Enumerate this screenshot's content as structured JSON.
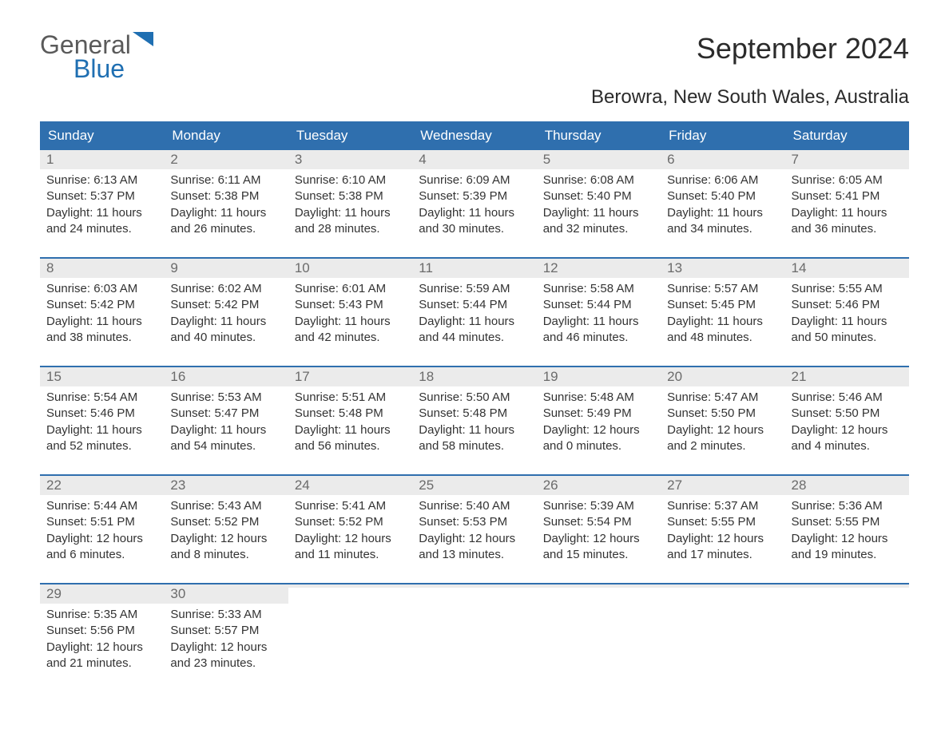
{
  "logo": {
    "word1": "General",
    "word2": "Blue"
  },
  "title": "September 2024",
  "location": "Berowra, New South Wales, Australia",
  "colors": {
    "header_bg": "#2f6fae",
    "header_text": "#ffffff",
    "daynum_bg": "#ebebeb",
    "daynum_text": "#6b6b6b",
    "border": "#2f6fae",
    "body_text": "#333333",
    "logo_gray": "#5a5a5a",
    "logo_blue": "#1f6fb2"
  },
  "day_headers": [
    "Sunday",
    "Monday",
    "Tuesday",
    "Wednesday",
    "Thursday",
    "Friday",
    "Saturday"
  ],
  "weeks": [
    [
      {
        "num": "1",
        "sunrise": "Sunrise: 6:13 AM",
        "sunset": "Sunset: 5:37 PM",
        "day1": "Daylight: 11 hours",
        "day2": "and 24 minutes."
      },
      {
        "num": "2",
        "sunrise": "Sunrise: 6:11 AM",
        "sunset": "Sunset: 5:38 PM",
        "day1": "Daylight: 11 hours",
        "day2": "and 26 minutes."
      },
      {
        "num": "3",
        "sunrise": "Sunrise: 6:10 AM",
        "sunset": "Sunset: 5:38 PM",
        "day1": "Daylight: 11 hours",
        "day2": "and 28 minutes."
      },
      {
        "num": "4",
        "sunrise": "Sunrise: 6:09 AM",
        "sunset": "Sunset: 5:39 PM",
        "day1": "Daylight: 11 hours",
        "day2": "and 30 minutes."
      },
      {
        "num": "5",
        "sunrise": "Sunrise: 6:08 AM",
        "sunset": "Sunset: 5:40 PM",
        "day1": "Daylight: 11 hours",
        "day2": "and 32 minutes."
      },
      {
        "num": "6",
        "sunrise": "Sunrise: 6:06 AM",
        "sunset": "Sunset: 5:40 PM",
        "day1": "Daylight: 11 hours",
        "day2": "and 34 minutes."
      },
      {
        "num": "7",
        "sunrise": "Sunrise: 6:05 AM",
        "sunset": "Sunset: 5:41 PM",
        "day1": "Daylight: 11 hours",
        "day2": "and 36 minutes."
      }
    ],
    [
      {
        "num": "8",
        "sunrise": "Sunrise: 6:03 AM",
        "sunset": "Sunset: 5:42 PM",
        "day1": "Daylight: 11 hours",
        "day2": "and 38 minutes."
      },
      {
        "num": "9",
        "sunrise": "Sunrise: 6:02 AM",
        "sunset": "Sunset: 5:42 PM",
        "day1": "Daylight: 11 hours",
        "day2": "and 40 minutes."
      },
      {
        "num": "10",
        "sunrise": "Sunrise: 6:01 AM",
        "sunset": "Sunset: 5:43 PM",
        "day1": "Daylight: 11 hours",
        "day2": "and 42 minutes."
      },
      {
        "num": "11",
        "sunrise": "Sunrise: 5:59 AM",
        "sunset": "Sunset: 5:44 PM",
        "day1": "Daylight: 11 hours",
        "day2": "and 44 minutes."
      },
      {
        "num": "12",
        "sunrise": "Sunrise: 5:58 AM",
        "sunset": "Sunset: 5:44 PM",
        "day1": "Daylight: 11 hours",
        "day2": "and 46 minutes."
      },
      {
        "num": "13",
        "sunrise": "Sunrise: 5:57 AM",
        "sunset": "Sunset: 5:45 PM",
        "day1": "Daylight: 11 hours",
        "day2": "and 48 minutes."
      },
      {
        "num": "14",
        "sunrise": "Sunrise: 5:55 AM",
        "sunset": "Sunset: 5:46 PM",
        "day1": "Daylight: 11 hours",
        "day2": "and 50 minutes."
      }
    ],
    [
      {
        "num": "15",
        "sunrise": "Sunrise: 5:54 AM",
        "sunset": "Sunset: 5:46 PM",
        "day1": "Daylight: 11 hours",
        "day2": "and 52 minutes."
      },
      {
        "num": "16",
        "sunrise": "Sunrise: 5:53 AM",
        "sunset": "Sunset: 5:47 PM",
        "day1": "Daylight: 11 hours",
        "day2": "and 54 minutes."
      },
      {
        "num": "17",
        "sunrise": "Sunrise: 5:51 AM",
        "sunset": "Sunset: 5:48 PM",
        "day1": "Daylight: 11 hours",
        "day2": "and 56 minutes."
      },
      {
        "num": "18",
        "sunrise": "Sunrise: 5:50 AM",
        "sunset": "Sunset: 5:48 PM",
        "day1": "Daylight: 11 hours",
        "day2": "and 58 minutes."
      },
      {
        "num": "19",
        "sunrise": "Sunrise: 5:48 AM",
        "sunset": "Sunset: 5:49 PM",
        "day1": "Daylight: 12 hours",
        "day2": "and 0 minutes."
      },
      {
        "num": "20",
        "sunrise": "Sunrise: 5:47 AM",
        "sunset": "Sunset: 5:50 PM",
        "day1": "Daylight: 12 hours",
        "day2": "and 2 minutes."
      },
      {
        "num": "21",
        "sunrise": "Sunrise: 5:46 AM",
        "sunset": "Sunset: 5:50 PM",
        "day1": "Daylight: 12 hours",
        "day2": "and 4 minutes."
      }
    ],
    [
      {
        "num": "22",
        "sunrise": "Sunrise: 5:44 AM",
        "sunset": "Sunset: 5:51 PM",
        "day1": "Daylight: 12 hours",
        "day2": "and 6 minutes."
      },
      {
        "num": "23",
        "sunrise": "Sunrise: 5:43 AM",
        "sunset": "Sunset: 5:52 PM",
        "day1": "Daylight: 12 hours",
        "day2": "and 8 minutes."
      },
      {
        "num": "24",
        "sunrise": "Sunrise: 5:41 AM",
        "sunset": "Sunset: 5:52 PM",
        "day1": "Daylight: 12 hours",
        "day2": "and 11 minutes."
      },
      {
        "num": "25",
        "sunrise": "Sunrise: 5:40 AM",
        "sunset": "Sunset: 5:53 PM",
        "day1": "Daylight: 12 hours",
        "day2": "and 13 minutes."
      },
      {
        "num": "26",
        "sunrise": "Sunrise: 5:39 AM",
        "sunset": "Sunset: 5:54 PM",
        "day1": "Daylight: 12 hours",
        "day2": "and 15 minutes."
      },
      {
        "num": "27",
        "sunrise": "Sunrise: 5:37 AM",
        "sunset": "Sunset: 5:55 PM",
        "day1": "Daylight: 12 hours",
        "day2": "and 17 minutes."
      },
      {
        "num": "28",
        "sunrise": "Sunrise: 5:36 AM",
        "sunset": "Sunset: 5:55 PM",
        "day1": "Daylight: 12 hours",
        "day2": "and 19 minutes."
      }
    ],
    [
      {
        "num": "29",
        "sunrise": "Sunrise: 5:35 AM",
        "sunset": "Sunset: 5:56 PM",
        "day1": "Daylight: 12 hours",
        "day2": "and 21 minutes."
      },
      {
        "num": "30",
        "sunrise": "Sunrise: 5:33 AM",
        "sunset": "Sunset: 5:57 PM",
        "day1": "Daylight: 12 hours",
        "day2": "and 23 minutes."
      },
      {
        "num": "",
        "sunrise": "",
        "sunset": "",
        "day1": "",
        "day2": ""
      },
      {
        "num": "",
        "sunrise": "",
        "sunset": "",
        "day1": "",
        "day2": ""
      },
      {
        "num": "",
        "sunrise": "",
        "sunset": "",
        "day1": "",
        "day2": ""
      },
      {
        "num": "",
        "sunrise": "",
        "sunset": "",
        "day1": "",
        "day2": ""
      },
      {
        "num": "",
        "sunrise": "",
        "sunset": "",
        "day1": "",
        "day2": ""
      }
    ]
  ]
}
